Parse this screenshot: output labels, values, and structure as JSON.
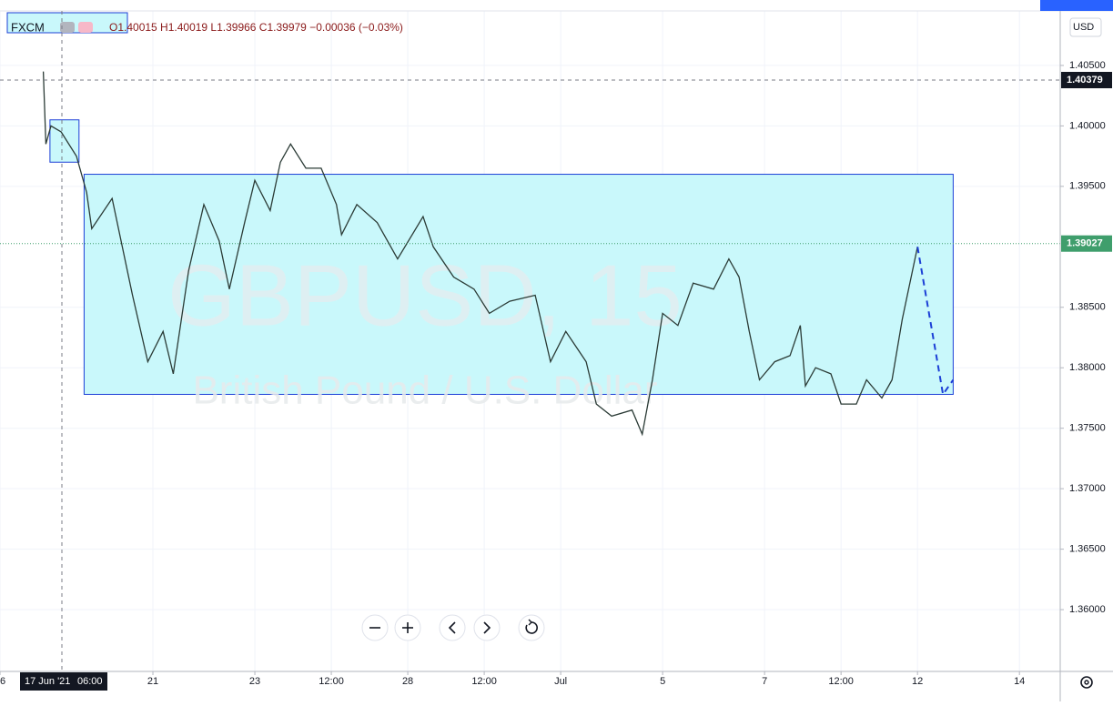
{
  "chart_data": {
    "type": "line",
    "symbol": "FXCM",
    "ohlc_text": "O1.40015 H1.40019 L1.39966 C1.39979 −0.00036 (−0.03%)",
    "watermark": "GBPUSD, 15",
    "watermark_subtitle": "British Pound / U.S. Dollar",
    "currency": "USD",
    "crosshair_label": "17 Jun '21",
    "crosshair_time": "06:00",
    "x": [
      0.85,
      0.9,
      1.0,
      1.2,
      1.5,
      1.7,
      1.8,
      2.2,
      2.6,
      2.9,
      3.2,
      3.4,
      3.7,
      4.0,
      4.3,
      4.5,
      4.8,
      5.0,
      5.3,
      5.5,
      5.7,
      6.0,
      6.3,
      6.6,
      6.7,
      7.0,
      7.4,
      7.8,
      8.3,
      8.5,
      8.9,
      9.3,
      9.6,
      10.0,
      10.5,
      10.8,
      11.1,
      11.5,
      11.7,
      12.0,
      12.4,
      12.6,
      12.8,
      13.0,
      13.3,
      13.6,
      14.0,
      14.3,
      14.5,
      14.7,
      14.9,
      15.2,
      15.5,
      15.7,
      15.8,
      16.0,
      16.3,
      16.5,
      16.8,
      17.0,
      17.3,
      17.5,
      17.7,
      17.9,
      18.0
    ],
    "series": [
      {
        "name": "GBPUSD",
        "color": "#2b3b36",
        "values": [
          1.4045,
          1.3985,
          1.4,
          1.3995,
          1.3975,
          1.3945,
          1.3915,
          1.394,
          1.386,
          1.3805,
          1.383,
          1.3795,
          1.388,
          1.3935,
          1.3905,
          1.3865,
          1.392,
          1.3955,
          1.393,
          1.397,
          1.3985,
          1.3965,
          1.3965,
          1.3935,
          1.391,
          1.3935,
          1.392,
          1.389,
          1.3925,
          1.39,
          1.3875,
          1.3865,
          1.3845,
          1.3855,
          1.386,
          1.3805,
          1.383,
          1.3805,
          1.377,
          1.376,
          1.3765,
          1.3745,
          1.379,
          1.3845,
          1.3835,
          1.387,
          1.3865,
          1.389,
          1.3875,
          1.383,
          1.379,
          1.3805,
          1.381,
          1.3835,
          1.3785,
          1.38,
          1.3795,
          1.377,
          1.377,
          1.379,
          1.3775,
          1.379,
          1.384,
          1.388,
          1.39
        ]
      }
    ],
    "xlim": [
      0,
      20.8
    ],
    "xticks": [
      {
        "value": 0,
        "label": "6"
      },
      {
        "value": 3,
        "label": "21"
      },
      {
        "value": 5,
        "label": "23"
      },
      {
        "value": 6.5,
        "label": "12:00"
      },
      {
        "value": 8,
        "label": "28"
      },
      {
        "value": 9.5,
        "label": "12:00"
      },
      {
        "value": 11,
        "label": "Jul"
      },
      {
        "value": 13,
        "label": "5"
      },
      {
        "value": 15,
        "label": "7"
      },
      {
        "value": 16.5,
        "label": "12:00"
      },
      {
        "value": 18,
        "label": "12"
      },
      {
        "value": 20,
        "label": "14"
      }
    ],
    "ylim": [
      1.35489,
      1.41041
    ],
    "yticks": [
      {
        "value": 1.36,
        "label": "1.36000"
      },
      {
        "value": 1.365,
        "label": "1.36500"
      },
      {
        "value": 1.37,
        "label": "1.37000"
      },
      {
        "value": 1.375,
        "label": "1.37500"
      },
      {
        "value": 1.38,
        "label": "1.38000"
      },
      {
        "value": 1.385,
        "label": "1.38500"
      },
      {
        "value": 1.395,
        "label": "1.39500"
      },
      {
        "value": 1.4,
        "label": "1.40000"
      },
      {
        "value": 1.405,
        "label": "1.40500"
      }
    ],
    "grid": true,
    "price_marks": [
      {
        "value": 1.40379,
        "label": "1.40379",
        "color": "#131722"
      },
      {
        "value": 1.39027,
        "label": "1.39027",
        "color": "#3f9e6c"
      }
    ],
    "rectangles": [
      {
        "x": [
          1.65,
          18.7
        ],
        "y": [
          1.3778,
          1.396
        ],
        "color": "#c9f8fb"
      },
      {
        "x": [
          0.98,
          1.55
        ],
        "y": [
          1.397,
          1.4005
        ],
        "color": "#c9f8fb"
      }
    ],
    "projection": {
      "x": [
        18.0,
        18.5,
        18.7
      ],
      "y": [
        1.39,
        1.3778,
        1.379
      ],
      "color": "#1c3fd6"
    }
  }
}
